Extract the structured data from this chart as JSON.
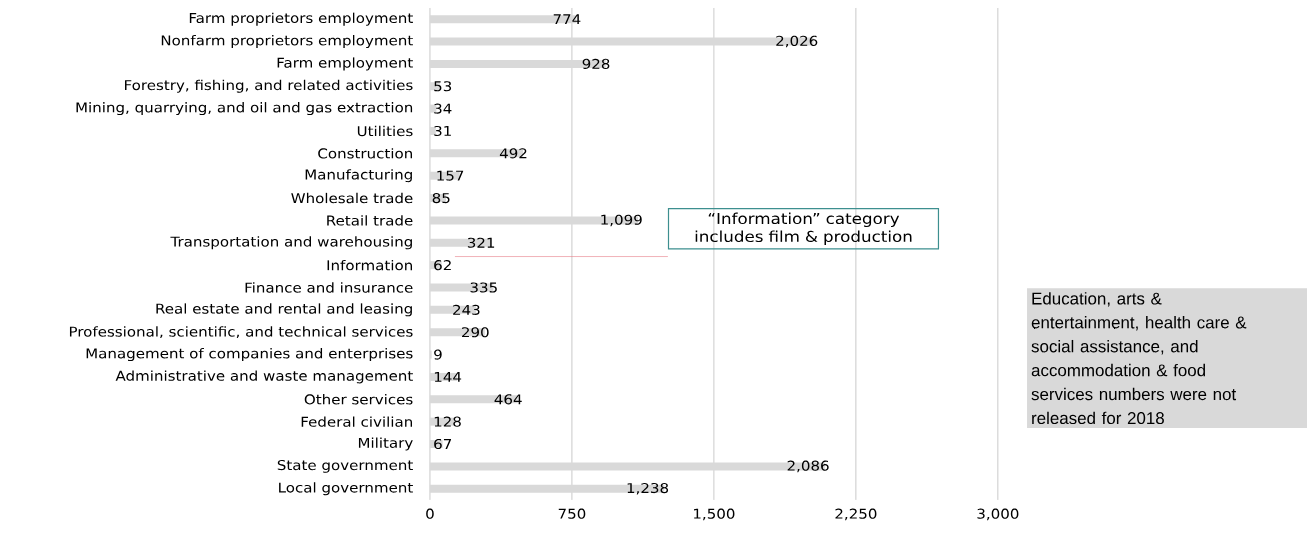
{
  "chart_data": {
    "type": "bar",
    "orientation": "horizontal",
    "categories": [
      "Farm proprietors employment",
      "Nonfarm proprietors employment",
      "Farm employment",
      "Forestry, fishing, and related activities",
      "Mining, quarrying, and oil and gas extraction",
      "Utilities",
      "Construction",
      "Manufacturing",
      "Wholesale trade",
      "Retail trade",
      "Transportation and warehousing",
      "Information",
      "Finance and insurance",
      "Real estate and rental and leasing",
      "Professional, scientific, and technical services",
      "Management of companies and enterprises",
      "Administrative and waste management",
      "Other services",
      "Federal civilian",
      "Military",
      "State government",
      "Local government"
    ],
    "values": [
      774,
      2026,
      928,
      53,
      34,
      31,
      492,
      157,
      85,
      1099,
      321,
      62,
      335,
      243,
      290,
      9,
      144,
      464,
      128,
      67,
      2086,
      1238
    ],
    "value_labels": [
      "774",
      "2,026",
      "928",
      "53",
      "34",
      "31",
      "492",
      "157",
      "85",
      "1,099",
      "321",
      "62",
      "335",
      "243",
      "290",
      "9",
      "144",
      "464",
      "128",
      "67",
      "2,086",
      "1,238"
    ],
    "color": "#d9d9d9",
    "xlim": [
      0,
      3000
    ],
    "xticks": [
      0,
      750,
      {
        "value": 1500,
        "label": "1,500"
      },
      {
        "value": 2250,
        "label": "2,250"
      },
      {
        "value": 3000,
        "label": "3,000"
      }
    ],
    "grid": "x",
    "annotations": [
      "“Information” category includes film & production",
      "Education, arts & entertainment, health care & social assistance, and accommodation & food services numbers were not released for 2018"
    ]
  }
}
